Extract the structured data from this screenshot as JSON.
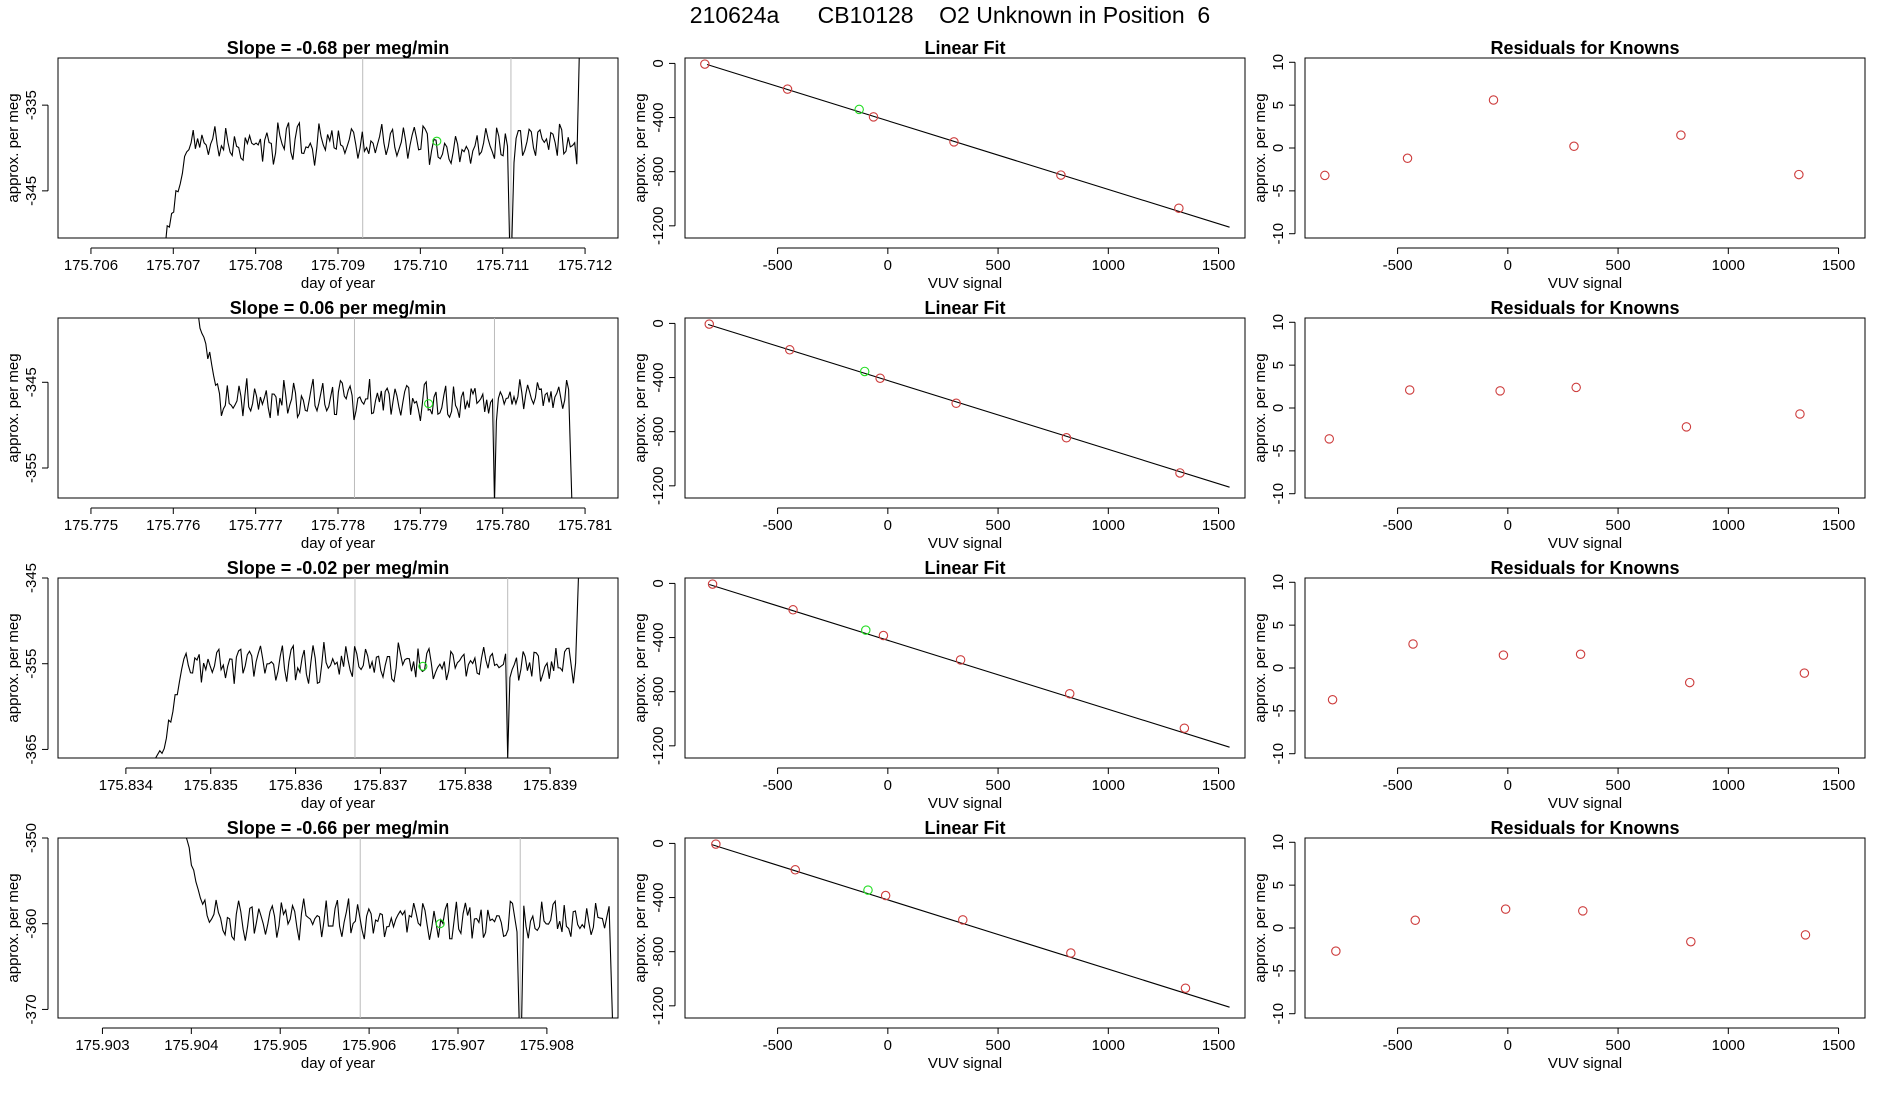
{
  "page_title": "210624a      CB10128    O2 Unknown in Position  6",
  "colors": {
    "trace": "#000000",
    "known_point": "#cd3c3c",
    "unknown_point": "#22dd22",
    "guide_line": "#bbbbbb",
    "fit_line": "#000000"
  },
  "chart_data": [
    {
      "id": "r1-trace",
      "type": "line",
      "title": "Slope =  -0.68  per meg/min",
      "xlabel": "day of year",
      "ylabel": "approx. per meg",
      "xlim": [
        175.7056,
        175.7124
      ],
      "ylim": [
        -350.5,
        -329.5
      ],
      "xticks": [
        175.706,
        175.707,
        175.708,
        175.709,
        175.71,
        175.711,
        175.712
      ],
      "xtick_labels": [
        "175.706",
        "175.707",
        "175.708",
        "175.709",
        "175.710",
        "175.711",
        "175.712"
      ],
      "yticks": [
        -335,
        -345
      ],
      "ytick_labels": [
        "-335",
        "-345"
      ],
      "vlines": [
        175.7093,
        175.7111
      ],
      "unknown_point": {
        "x": 175.7102,
        "y": -339.2
      },
      "series": {
        "t_start": 175.7069,
        "t_gap": 175.7111,
        "t_end": 175.7119,
        "mean": -339.5,
        "lead": -351,
        "gap_low": -351,
        "tail": -325,
        "amp": 2.1,
        "seed": 3
      }
    },
    {
      "id": "r1-fit",
      "type": "scatter",
      "title": "Linear Fit",
      "xlabel": "VUV signal",
      "ylabel": "approx. per meg",
      "xlim": [
        -920,
        1620
      ],
      "ylim": [
        -1290,
        40
      ],
      "xticks": [
        -500,
        0,
        500,
        1000,
        1500
      ],
      "xtick_labels": [
        "-500",
        "0",
        "500",
        "1000",
        "1500"
      ],
      "yticks": [
        0,
        -400,
        -800,
        -1200
      ],
      "ytick_labels": [
        "0",
        "-400",
        "-800",
        "-1200"
      ],
      "fit_line": {
        "x": [
          -820,
          1550
        ],
        "y": [
          -8,
          -1210
        ]
      },
      "known_points": {
        "x": [
          -830,
          -455,
          -65,
          300,
          785,
          1320
        ],
        "y": [
          -5,
          -190,
          -395,
          -580,
          -825,
          -1070
        ]
      },
      "unknown_point": {
        "x": -130,
        "y": -340
      }
    },
    {
      "id": "r1-resid",
      "type": "scatter",
      "title": "Residuals for Knowns",
      "xlabel": "VUV signal",
      "ylabel": "approx. per meg",
      "xlim": [
        -920,
        1620
      ],
      "ylim": [
        -10.5,
        10.5
      ],
      "xticks": [
        -500,
        0,
        500,
        1000,
        1500
      ],
      "xtick_labels": [
        "-500",
        "0",
        "500",
        "1000",
        "1500"
      ],
      "yticks": [
        10,
        5,
        0,
        -5,
        -10
      ],
      "ytick_labels": [
        "10",
        "5",
        "0",
        "-5",
        "-10"
      ],
      "known_points": {
        "x": [
          -830,
          -455,
          -65,
          300,
          785,
          1320
        ],
        "y": [
          -3.2,
          -1.2,
          5.6,
          0.2,
          1.5,
          -3.1
        ]
      }
    },
    {
      "id": "r2-trace",
      "type": "line",
      "title": "Slope =  0.06  per meg/min",
      "xlabel": "day of year",
      "ylabel": "approx. per meg",
      "xlim": [
        175.7746,
        175.7814
      ],
      "ylim": [
        -358.5,
        -337.5
      ],
      "xticks": [
        175.775,
        175.776,
        175.777,
        175.778,
        175.779,
        175.78,
        175.781
      ],
      "xtick_labels": [
        "175.775",
        "175.776",
        "175.777",
        "175.778",
        "175.779",
        "175.780",
        "175.781"
      ],
      "yticks": [
        -345,
        -355
      ],
      "ytick_labels": [
        "-345",
        "-355"
      ],
      "vlines": [
        175.7782,
        175.7799
      ],
      "unknown_point": {
        "x": 175.7791,
        "y": -347.5
      },
      "series": {
        "t_start": 175.7763,
        "t_gap": 175.7799,
        "t_end": 175.7808,
        "mean": -347.0,
        "lead": -337,
        "gap_low": -359,
        "tail": -359,
        "amp": 2.1,
        "seed": 7
      }
    },
    {
      "id": "r2-fit",
      "type": "scatter",
      "title": "Linear Fit",
      "xlabel": "VUV signal",
      "ylabel": "approx. per meg",
      "xlim": [
        -920,
        1620
      ],
      "ylim": [
        -1290,
        40
      ],
      "xticks": [
        -500,
        0,
        500,
        1000,
        1500
      ],
      "xtick_labels": [
        "-500",
        "0",
        "500",
        "1000",
        "1500"
      ],
      "yticks": [
        0,
        -400,
        -800,
        -1200
      ],
      "ytick_labels": [
        "0",
        "-400",
        "-800",
        "-1200"
      ],
      "fit_line": {
        "x": [
          -815,
          1550
        ],
        "y": [
          -8,
          -1210
        ]
      },
      "known_points": {
        "x": [
          -810,
          -445,
          -35,
          310,
          810,
          1325
        ],
        "y": [
          -5,
          -195,
          -405,
          -590,
          -845,
          -1105
        ]
      },
      "unknown_point": {
        "x": -105,
        "y": -355
      }
    },
    {
      "id": "r2-resid",
      "type": "scatter",
      "title": "Residuals for Knowns",
      "xlabel": "VUV signal",
      "ylabel": "approx. per meg",
      "xlim": [
        -920,
        1620
      ],
      "ylim": [
        -10.5,
        10.5
      ],
      "xticks": [
        -500,
        0,
        500,
        1000,
        1500
      ],
      "xtick_labels": [
        "-500",
        "0",
        "500",
        "1000",
        "1500"
      ],
      "yticks": [
        10,
        5,
        0,
        -5,
        -10
      ],
      "ytick_labels": [
        "10",
        "5",
        "0",
        "-5",
        "-10"
      ],
      "known_points": {
        "x": [
          -810,
          -445,
          -35,
          310,
          810,
          1325
        ],
        "y": [
          -3.6,
          2.1,
          2.0,
          2.4,
          -2.2,
          -0.7
        ]
      }
    },
    {
      "id": "r3-trace",
      "type": "line",
      "title": "Slope =  -0.02  per meg/min",
      "xlabel": "day of year",
      "ylabel": "approx. per meg",
      "xlim": [
        175.8332,
        175.8398
      ],
      "ylim": [
        -366,
        -345
      ],
      "xticks": [
        175.834,
        175.835,
        175.836,
        175.837,
        175.838,
        175.839
      ],
      "xtick_labels": [
        "175.834",
        "175.835",
        "175.836",
        "175.837",
        "175.838",
        "175.839"
      ],
      "yticks": [
        -345,
        -355,
        -365
      ],
      "ytick_labels": [
        "-345",
        "-355",
        "-365"
      ],
      "vlines": [
        175.8367,
        175.8385
      ],
      "unknown_point": {
        "x": 175.8375,
        "y": -355.3
      },
      "series": {
        "t_start": 175.8344,
        "t_gap": 175.8385,
        "t_end": 175.8393,
        "mean": -355.0,
        "lead": -366,
        "gap_low": -366,
        "tail": -343,
        "amp": 2.1,
        "seed": 11
      }
    },
    {
      "id": "r3-fit",
      "type": "scatter",
      "title": "Linear Fit",
      "xlabel": "VUV signal",
      "ylabel": "approx. per meg",
      "xlim": [
        -920,
        1620
      ],
      "ylim": [
        -1290,
        40
      ],
      "xticks": [
        -500,
        0,
        500,
        1000,
        1500
      ],
      "xtick_labels": [
        "-500",
        "0",
        "500",
        "1000",
        "1500"
      ],
      "yticks": [
        0,
        -400,
        -800,
        -1200
      ],
      "ytick_labels": [
        "0",
        "-400",
        "-800",
        "-1200"
      ],
      "fit_line": {
        "x": [
          -810,
          1550
        ],
        "y": [
          -8,
          -1210
        ]
      },
      "known_points": {
        "x": [
          -795,
          -430,
          -20,
          330,
          825,
          1345
        ],
        "y": [
          -5,
          -195,
          -385,
          -565,
          -815,
          -1070
        ]
      },
      "unknown_point": {
        "x": -100,
        "y": -345
      }
    },
    {
      "id": "r3-resid",
      "type": "scatter",
      "title": "Residuals for Knowns",
      "xlabel": "VUV signal",
      "ylabel": "approx. per meg",
      "xlim": [
        -920,
        1620
      ],
      "ylim": [
        -10.5,
        10.5
      ],
      "xticks": [
        -500,
        0,
        500,
        1000,
        1500
      ],
      "xtick_labels": [
        "-500",
        "0",
        "500",
        "1000",
        "1500"
      ],
      "yticks": [
        10,
        5,
        0,
        -5,
        -10
      ],
      "ytick_labels": [
        "10",
        "5",
        "0",
        "-5",
        "-10"
      ],
      "known_points": {
        "x": [
          -795,
          -430,
          -20,
          330,
          825,
          1345
        ],
        "y": [
          -3.7,
          2.8,
          1.5,
          1.6,
          -1.7,
          -0.6
        ]
      }
    },
    {
      "id": "r4-trace",
      "type": "line",
      "title": "Slope =  -0.66  per meg/min",
      "xlabel": "day of year",
      "ylabel": "approx. per meg",
      "xlim": [
        175.9025,
        175.9088
      ],
      "ylim": [
        -371,
        -350
      ],
      "xticks": [
        175.903,
        175.904,
        175.905,
        175.906,
        175.907,
        175.908
      ],
      "xtick_labels": [
        "175.903",
        "175.904",
        "175.905",
        "175.906",
        "175.907",
        "175.908"
      ],
      "yticks": [
        -350,
        -360,
        -370
      ],
      "ytick_labels": [
        "-350",
        "-360",
        "-370"
      ],
      "vlines": [
        175.9059,
        175.9077
      ],
      "unknown_point": {
        "x": 175.9068,
        "y": -360.0
      },
      "series": {
        "t_start": 175.9039,
        "t_gap": 175.9077,
        "t_end": 175.9087,
        "mean": -359.5,
        "lead": -349,
        "gap_low": -372,
        "tail": -372,
        "amp": 2.1,
        "seed": 19
      }
    },
    {
      "id": "r4-fit",
      "type": "scatter",
      "title": "Linear Fit",
      "xlabel": "VUV signal",
      "ylabel": "approx. per meg",
      "xlim": [
        -920,
        1620
      ],
      "ylim": [
        -1290,
        40
      ],
      "xticks": [
        -500,
        0,
        500,
        1000,
        1500
      ],
      "xtick_labels": [
        "-500",
        "0",
        "500",
        "1000",
        "1500"
      ],
      "yticks": [
        0,
        -400,
        -800,
        -1200
      ],
      "ytick_labels": [
        "0",
        "-400",
        "-800",
        "-1200"
      ],
      "fit_line": {
        "x": [
          -800,
          1550
        ],
        "y": [
          -8,
          -1210
        ]
      },
      "known_points": {
        "x": [
          -780,
          -420,
          -10,
          340,
          830,
          1350
        ],
        "y": [
          -5,
          -195,
          -385,
          -565,
          -810,
          -1070
        ]
      },
      "unknown_point": {
        "x": -90,
        "y": -345
      }
    },
    {
      "id": "r4-resid",
      "type": "scatter",
      "title": "Residuals for Knowns",
      "xlabel": "VUV signal",
      "ylabel": "approx. per meg",
      "xlim": [
        -920,
        1620
      ],
      "ylim": [
        -10.5,
        10.5
      ],
      "xticks": [
        -500,
        0,
        500,
        1000,
        1500
      ],
      "xtick_labels": [
        "-500",
        "0",
        "500",
        "1000",
        "1500"
      ],
      "yticks": [
        10,
        5,
        0,
        -5,
        -10
      ],
      "ytick_labels": [
        "10",
        "5",
        "0",
        "-5",
        "-10"
      ],
      "known_points": {
        "x": [
          -780,
          -420,
          -10,
          340,
          830,
          1350
        ],
        "y": [
          -2.7,
          0.9,
          2.2,
          2.0,
          -1.6,
          -0.8
        ]
      }
    }
  ]
}
